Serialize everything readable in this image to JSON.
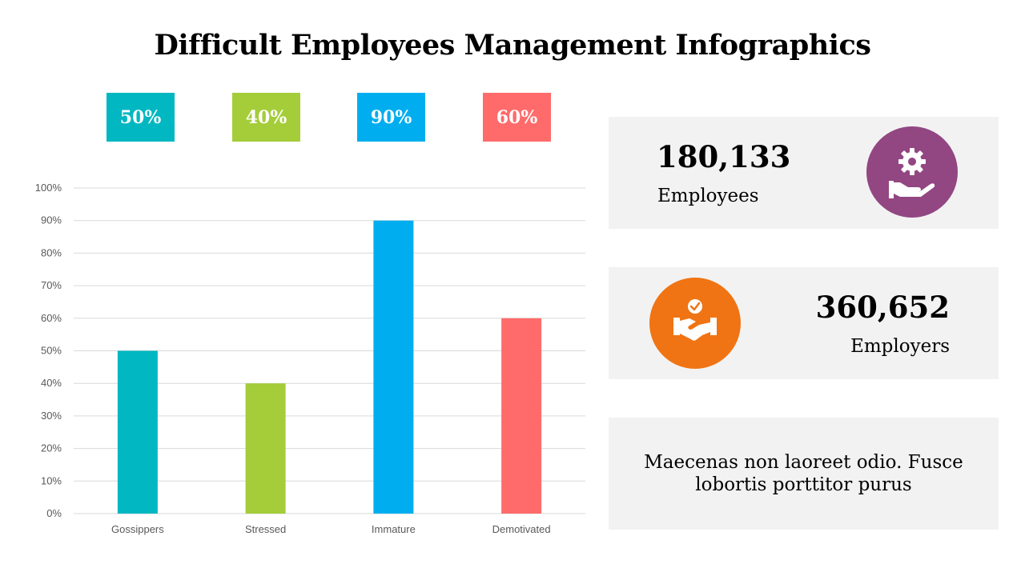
{
  "title": "Difficult Employees Management Infographics",
  "chart_data": {
    "type": "bar",
    "categories": [
      "Gossippers",
      "Stressed",
      "Immature",
      "Demotivated"
    ],
    "values": [
      50,
      40,
      90,
      60
    ],
    "colors": [
      "#00b7c2",
      "#a4cd39",
      "#00aeef",
      "#ff6b6b"
    ],
    "ylim": [
      0,
      100
    ],
    "yticks": [
      "0%",
      "10%",
      "20%",
      "30%",
      "40%",
      "50%",
      "60%",
      "70%",
      "80%",
      "90%",
      "100%"
    ],
    "grid": true,
    "top_labels": [
      "50%",
      "40%",
      "90%",
      "60%"
    ]
  },
  "stats": [
    {
      "value": "180,133",
      "label": "Employees",
      "icon": "gear-hand-icon",
      "color": "#924682"
    },
    {
      "value": "360,652",
      "label": "Employers",
      "icon": "handshake-check-icon",
      "color": "#f07413"
    }
  ],
  "note": "Maecenas non laoreet odio. Fusce lobortis porttitor purus"
}
